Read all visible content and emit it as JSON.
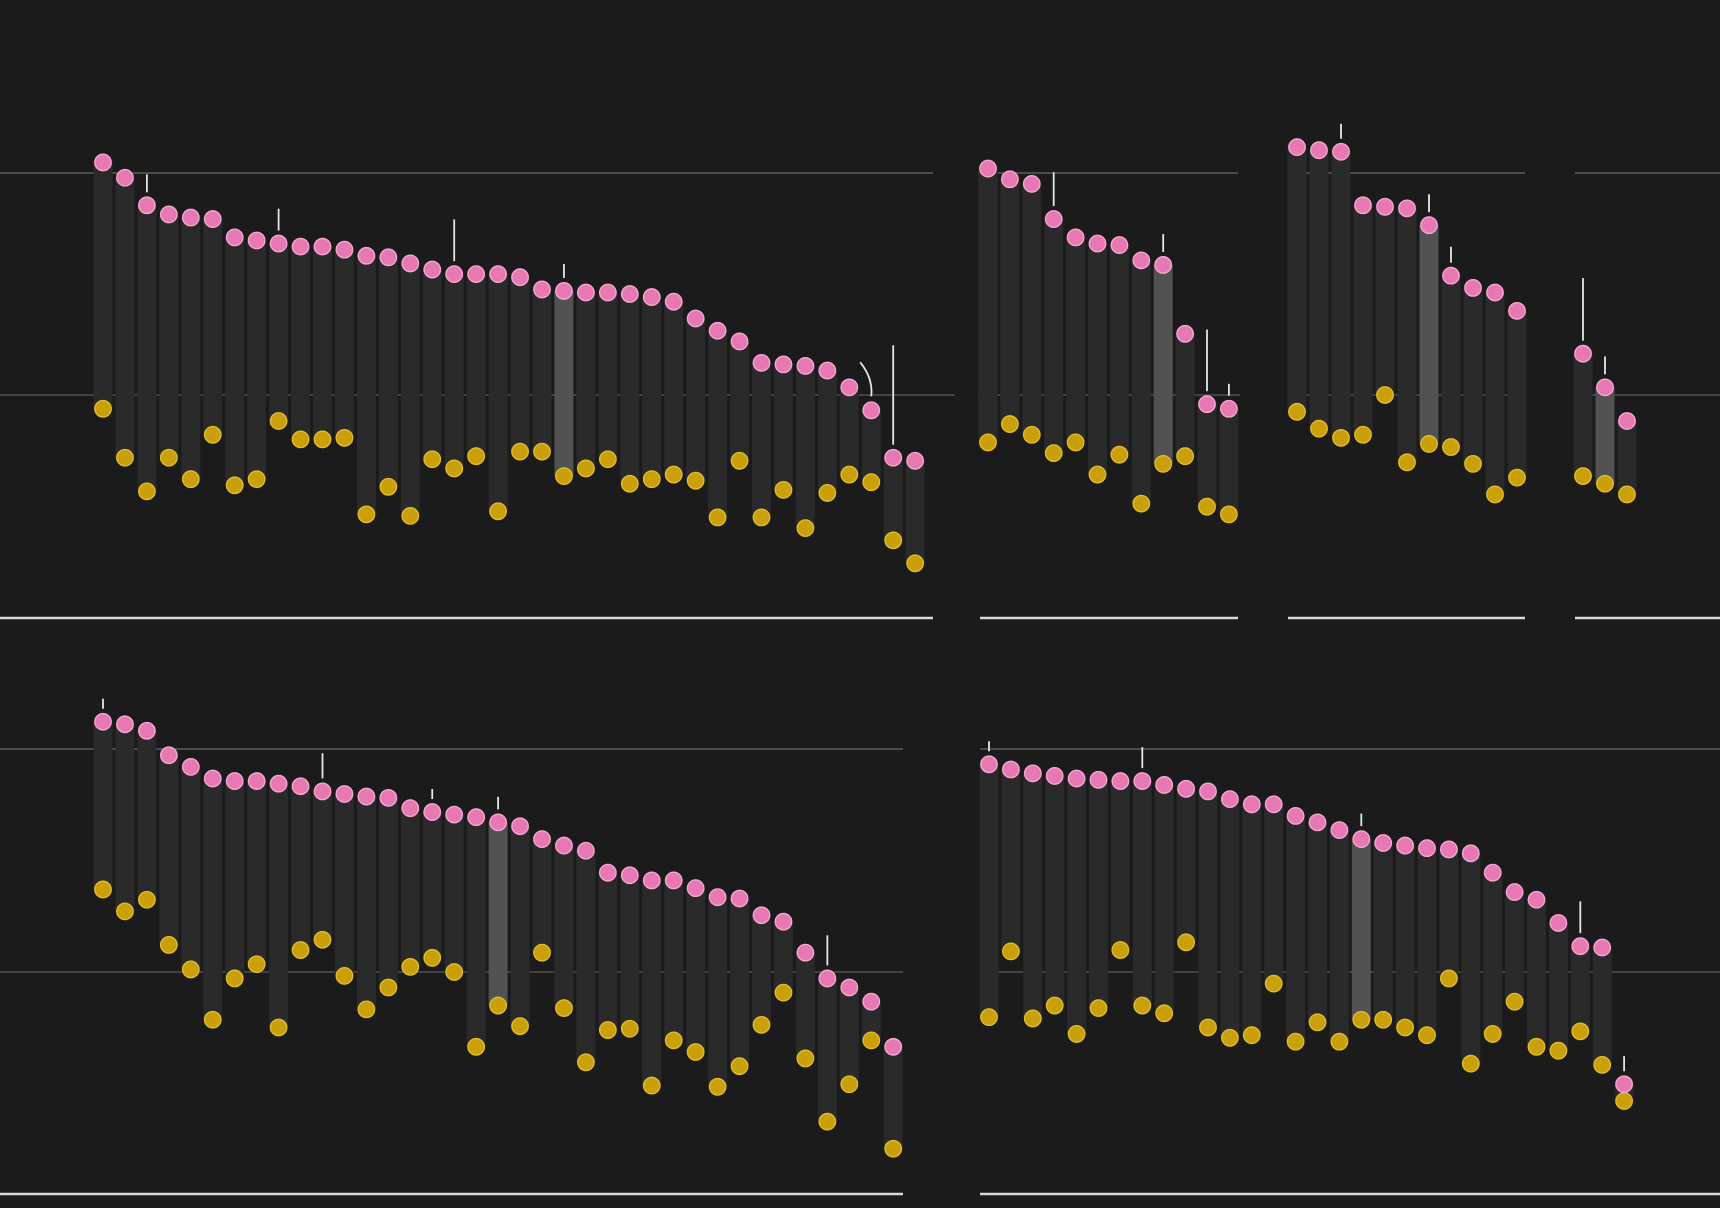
{
  "colors": {
    "background": "#1b1b1b",
    "series_a": "#e878b4",
    "series_b": "#c9a00a",
    "highlight_column": "#525252",
    "column": "#2a2a2a"
  },
  "chart_data": [
    {
      "type": "dot-range",
      "panel": "top-1",
      "series": [
        {
          "color": "#e878b4",
          "values": [
            1.52,
            1.42,
            1.24,
            1.18,
            1.16,
            1.15,
            1.03,
            1.01,
            0.99,
            0.97,
            0.97,
            0.95,
            0.91,
            0.9,
            0.86,
            0.82,
            0.79,
            0.79,
            0.79,
            0.77,
            0.69,
            0.68,
            0.67,
            0.67,
            0.66,
            0.64,
            0.61,
            0.5,
            0.42,
            0.35,
            0.21,
            0.2,
            0.19,
            0.16,
            0.05,
            -0.1,
            -0.41,
            -0.43
          ]
        },
        {
          "color": "#c9a00a",
          "values": [
            -0.09,
            -0.41,
            -0.63,
            -0.41,
            -0.55,
            -0.26,
            -0.59,
            -0.55,
            -0.17,
            -0.29,
            -0.29,
            -0.28,
            -0.78,
            -0.6,
            -0.79,
            -0.42,
            -0.48,
            -0.4,
            -0.76,
            -0.37,
            -0.37,
            -0.53,
            -0.48,
            -0.42,
            -0.58,
            -0.55,
            -0.52,
            -0.56,
            -0.8,
            -0.43,
            -0.8,
            -0.62,
            -0.87,
            -0.64,
            -0.52,
            -0.57,
            -0.95,
            -1.1
          ]
        }
      ],
      "highlight_index": 21,
      "ticks": [
        {
          "i": 2,
          "len": 0.18
        },
        {
          "i": 8,
          "len": 0.22
        },
        {
          "i": 16,
          "len": 0.42
        },
        {
          "i": 21,
          "len": 0.14
        },
        {
          "i": 36,
          "len": 1.0
        }
      ]
    },
    {
      "type": "dot-range",
      "panel": "top-2",
      "series": [
        {
          "color": "#e878b4",
          "values": [
            1.48,
            1.41,
            1.38,
            1.15,
            1.03,
            0.99,
            0.98,
            0.88,
            0.85,
            0.4,
            -0.06,
            -0.09
          ]
        },
        {
          "color": "#c9a00a",
          "values": [
            -0.31,
            -0.19,
            -0.26,
            -0.38,
            -0.31,
            -0.52,
            -0.39,
            -0.71,
            -0.45,
            -0.4,
            -0.73,
            -0.78
          ]
        }
      ],
      "highlight_index": 8,
      "ticks": [
        {
          "i": 3,
          "len": 0.34
        },
        {
          "i": 8,
          "len": 0.18
        },
        {
          "i": 10,
          "len": 0.62
        },
        {
          "i": 11,
          "len": 0.12
        }
      ]
    },
    {
      "type": "dot-range",
      "panel": "top-3",
      "series": [
        {
          "color": "#e878b4",
          "values": [
            1.62,
            1.6,
            1.59,
            1.24,
            1.23,
            1.22,
            1.11,
            0.78,
            0.7,
            0.67,
            0.55
          ]
        },
        {
          "color": "#c9a00a",
          "values": [
            -0.11,
            -0.22,
            -0.28,
            -0.26,
            0.0,
            -0.44,
            -0.32,
            -0.34,
            -0.45,
            -0.65,
            -0.54
          ]
        }
      ],
      "highlight_index": 6,
      "ticks": [
        {
          "i": 2,
          "len": 0.15
        },
        {
          "i": 6,
          "len": 0.18
        },
        {
          "i": 7,
          "len": 0.16
        }
      ]
    },
    {
      "type": "dot-range",
      "panel": "top-4",
      "series": [
        {
          "color": "#e878b4",
          "values": [
            0.27,
            0.05,
            -0.17
          ]
        },
        {
          "color": "#c9a00a",
          "values": [
            -0.53,
            -0.58,
            -0.65
          ]
        }
      ],
      "highlight_index": 1,
      "ticks": [
        {
          "i": 0,
          "len": 0.63
        },
        {
          "i": 1,
          "len": 0.18
        }
      ]
    },
    {
      "type": "dot-range",
      "panel": "bottom-1",
      "series": [
        {
          "color": "#e878b4",
          "values": [
            1.94,
            1.92,
            1.87,
            1.68,
            1.59,
            1.5,
            1.48,
            1.48,
            1.46,
            1.44,
            1.4,
            1.38,
            1.36,
            1.35,
            1.27,
            1.24,
            1.22,
            1.2,
            1.16,
            1.13,
            1.03,
            0.98,
            0.94,
            0.77,
            0.75,
            0.71,
            0.71,
            0.65,
            0.58,
            0.57,
            0.44,
            0.39,
            0.15,
            -0.05,
            -0.12,
            -0.23,
            -0.58
          ]
        },
        {
          "color": "#c9a00a",
          "values": [
            0.64,
            0.47,
            0.56,
            0.21,
            0.02,
            -0.37,
            -0.05,
            0.06,
            -0.43,
            0.17,
            0.25,
            -0.03,
            -0.29,
            -0.12,
            0.04,
            0.11,
            0.0,
            -0.58,
            -0.26,
            -0.42,
            0.15,
            -0.28,
            -0.7,
            -0.45,
            -0.44,
            -0.88,
            -0.53,
            -0.62,
            -0.89,
            -0.73,
            -0.41,
            -0.16,
            -0.67,
            -1.16,
            -0.87,
            -0.53,
            -1.37
          ]
        }
      ],
      "highlight_index": 18,
      "ticks": [
        {
          "i": 0,
          "len": 0.12
        },
        {
          "i": 10,
          "len": 0.3
        },
        {
          "i": 15,
          "len": 0.12
        },
        {
          "i": 18,
          "len": 0.15
        },
        {
          "i": 33,
          "len": 0.36
        }
      ]
    },
    {
      "type": "dot-range",
      "panel": "bottom-2",
      "series": [
        {
          "color": "#e878b4",
          "values": [
            1.61,
            1.57,
            1.54,
            1.52,
            1.5,
            1.49,
            1.48,
            1.48,
            1.45,
            1.42,
            1.4,
            1.34,
            1.3,
            1.3,
            1.21,
            1.16,
            1.1,
            1.03,
            1.0,
            0.98,
            0.96,
            0.95,
            0.92,
            0.77,
            0.62,
            0.56,
            0.38,
            0.2,
            0.19,
            -0.87
          ]
        },
        {
          "color": "#c9a00a",
          "values": [
            -0.35,
            0.16,
            -0.36,
            -0.26,
            -0.48,
            -0.28,
            0.17,
            -0.26,
            -0.32,
            0.23,
            -0.43,
            -0.51,
            -0.49,
            -0.09,
            -0.54,
            -0.39,
            -0.54,
            -0.37,
            -0.37,
            -0.43,
            -0.49,
            -0.05,
            -0.71,
            -0.48,
            -0.23,
            -0.58,
            -0.61,
            -0.46,
            -0.72,
            -1.0
          ]
        }
      ],
      "highlight_index": 17,
      "ticks": [
        {
          "i": 0,
          "len": 0.12
        },
        {
          "i": 7,
          "len": 0.25
        },
        {
          "i": 17,
          "len": 0.15
        },
        {
          "i": 27,
          "len": 0.38
        },
        {
          "i": 29,
          "len": 0.18
        }
      ]
    }
  ]
}
